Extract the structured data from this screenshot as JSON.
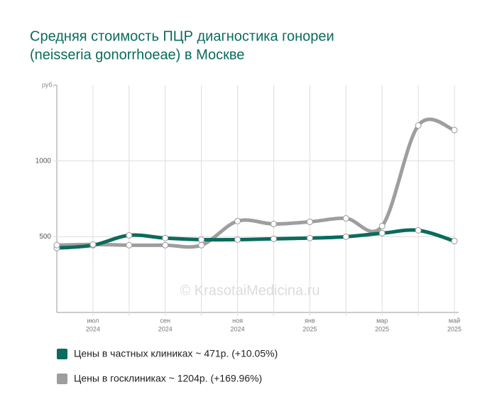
{
  "chart_data": {
    "type": "line",
    "title": [
      "Средняя стоимость ПЦР диагностика гонореи",
      "(neisseria gonorrhoeae) в Москве"
    ],
    "y_unit": "руб.",
    "watermark": "© KrasotaiMedicina.ru",
    "categories": [
      null,
      [
        "июл",
        "2024"
      ],
      null,
      [
        "сен",
        "2024"
      ],
      null,
      [
        "ноя",
        "2024"
      ],
      null,
      [
        "янв",
        "2025"
      ],
      null,
      [
        "мар",
        "2025"
      ],
      null,
      [
        "май",
        "2025"
      ]
    ],
    "series": [
      {
        "name": "Цены в частных клиниках ~ 471р. (+10.05%)",
        "color": "#0b6b5d",
        "values": [
          425,
          444,
          509,
          491,
          481,
          481,
          486,
          491,
          500,
          523,
          542,
          471
        ]
      },
      {
        "name": "Цены в госклиниках ~ 1204р. (+169.96%)",
        "color": "#9e9e9e",
        "values": [
          444,
          449,
          444,
          444,
          444,
          603,
          584,
          598,
          621,
          570,
          1234,
          1204
        ]
      }
    ],
    "ylim": [
      0,
      1500
    ],
    "yticks": [
      500,
      1000
    ],
    "grid": true
  }
}
